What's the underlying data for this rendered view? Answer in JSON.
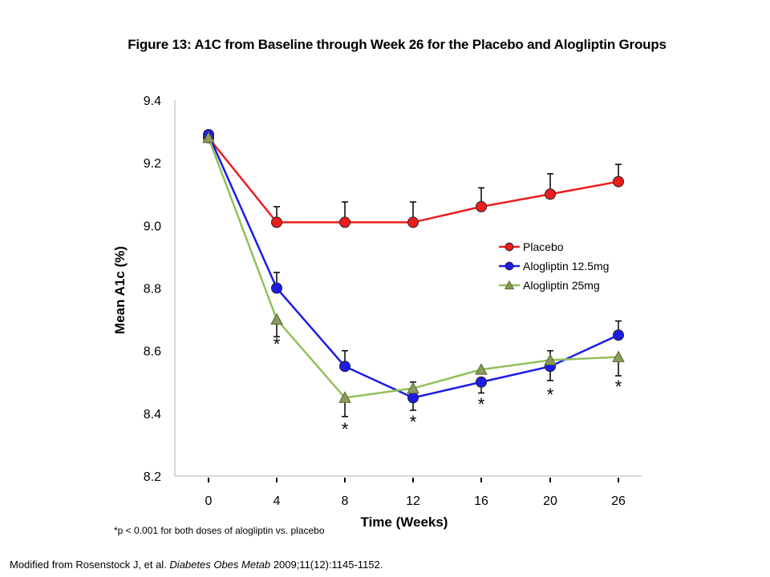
{
  "title": "Figure 13: A1C from Baseline through Week 26 for the Placebo and Alogliptin Groups",
  "footnote": "*p < 0.001 for both doses of alogliptin vs. placebo",
  "source": {
    "prefix": "Modified from Rosenstock J, et al. ",
    "journal": "Diabetes Obes Metab",
    "suffix": " 2009;11(12):1145-1152."
  },
  "chart_data": {
    "type": "line",
    "xlabel": "Time (Weeks)",
    "ylabel": "Mean A1c (%)",
    "categories": [
      "0",
      "4",
      "8",
      "12",
      "16",
      "20",
      "26"
    ],
    "ylim": [
      8.2,
      9.4
    ],
    "yticks": [
      "8.2",
      "8.4",
      "8.6",
      "8.8",
      "9.0",
      "9.2",
      "9.4"
    ],
    "grid": false,
    "legend_position": "right",
    "series": [
      {
        "name": "Placebo",
        "color": "#ee1c1c",
        "marker": "circle",
        "values": [
          9.28,
          9.01,
          9.01,
          9.01,
          9.06,
          9.1,
          9.14
        ],
        "error_upper": [
          null,
          0.05,
          0.065,
          0.065,
          0.06,
          0.065,
          0.055
        ]
      },
      {
        "name": "Alogliptin 12.5mg",
        "color": "#1c1ce6",
        "marker": "circle",
        "values": [
          9.29,
          8.8,
          8.55,
          8.45,
          8.5,
          8.55,
          8.65
        ],
        "error_upper": [
          null,
          0.05,
          0.05,
          null,
          null,
          null,
          0.045
        ],
        "error_lower": [
          null,
          null,
          null,
          0.04,
          0.035,
          0.045,
          null
        ]
      },
      {
        "name": "Alogliptin 25mg",
        "color": "#92c05a",
        "marker": "triangle",
        "values": [
          9.28,
          8.7,
          8.45,
          8.48,
          8.54,
          8.57,
          8.58
        ],
        "error_upper": [
          null,
          null,
          null,
          0.02,
          null,
          0.03,
          null
        ],
        "error_lower": [
          null,
          0.055,
          0.06,
          null,
          null,
          null,
          0.06
        ]
      }
    ],
    "significance_marker": "*",
    "significant_points": [
      1,
      2,
      3,
      4,
      5,
      6
    ]
  }
}
